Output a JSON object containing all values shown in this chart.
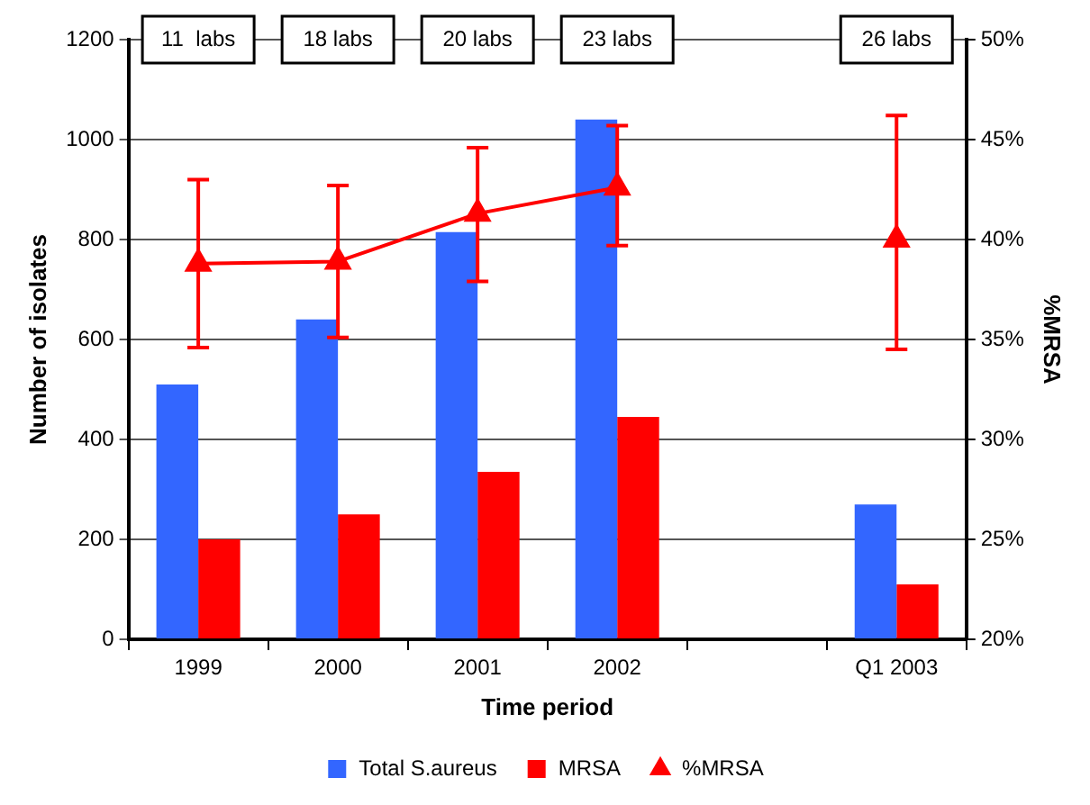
{
  "chart_data": {
    "type": "bar",
    "xlabel": "Time period",
    "ylabel": "Number of isolates",
    "y2label": "%MRSA",
    "categories": [
      "1999",
      "2000",
      "2001",
      "2002",
      null,
      "Q1 2003"
    ],
    "series": [
      {
        "name": "Total S.aureus",
        "color": "#3366ff",
        "values": [
          510,
          640,
          815,
          1040,
          null,
          270
        ]
      },
      {
        "name": "MRSA",
        "color": "#ff0000",
        "values": [
          200,
          250,
          335,
          445,
          null,
          110
        ]
      },
      {
        "name": "%MRSA",
        "type": "line",
        "axis": "y2",
        "color": "#ff0000",
        "values": [
          38.8,
          38.9,
          41.3,
          42.6,
          null,
          40.0
        ],
        "errors": [
          [
            34.6,
            43.0
          ],
          [
            35.1,
            42.7
          ],
          [
            37.9,
            44.6
          ],
          [
            39.7,
            45.7
          ],
          null,
          [
            34.5,
            46.2
          ]
        ]
      }
    ],
    "ylim": [
      0,
      1200
    ],
    "yticks": [
      0,
      200,
      400,
      600,
      800,
      1000,
      1200
    ],
    "y2lim": [
      20,
      50
    ],
    "y2ticks": [
      {
        "value": 20,
        "label": "20%"
      },
      {
        "value": 25,
        "label": "25%"
      },
      {
        "value": 30,
        "label": "30%"
      },
      {
        "value": 35,
        "label": "35%"
      },
      {
        "value": 40,
        "label": "40%"
      },
      {
        "value": 45,
        "label": "45%"
      },
      {
        "value": 50,
        "label": "50%"
      }
    ],
    "annotations": [
      "11  labs",
      "18 labs",
      "20 labs",
      "23 labs",
      "26 labs"
    ],
    "grid": "y",
    "legend": "bottom",
    "marker": "triangle",
    "line_style": "solid"
  }
}
